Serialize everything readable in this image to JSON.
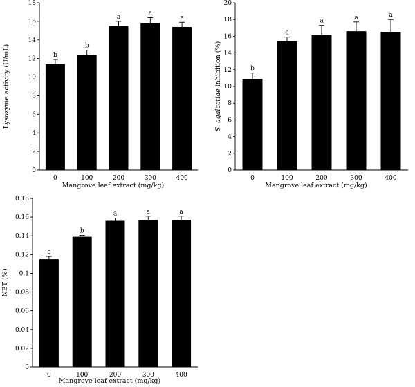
{
  "chart_data": [
    {
      "type": "bar",
      "categories": [
        "0",
        "100",
        "200",
        "300",
        "400"
      ],
      "values": [
        11.4,
        12.4,
        15.5,
        15.8,
        15.4
      ],
      "errors": [
        0.5,
        0.5,
        0.5,
        0.6,
        0.5
      ],
      "significance": [
        "b",
        "b",
        "a",
        "a",
        "a"
      ],
      "ylim": [
        0,
        18
      ],
      "yticks": [
        0,
        2,
        4,
        6,
        8,
        10,
        12,
        14,
        16,
        18
      ],
      "ytick_labels": [
        "0",
        "2",
        "4",
        "6",
        "8",
        "10",
        "12",
        "14",
        "16",
        "18"
      ],
      "xlabel": "Mangrove leaf extract (mg/kg)",
      "ylabel": "Lysozyme activity (U/mL)"
    },
    {
      "type": "bar",
      "categories": [
        "0",
        "100",
        "200",
        "300",
        "400"
      ],
      "values": [
        10.9,
        15.4,
        16.2,
        16.6,
        16.5
      ],
      "errors": [
        0.7,
        0.5,
        1.1,
        1.1,
        1.5
      ],
      "significance": [
        "b",
        "a",
        "a",
        "a",
        "a"
      ],
      "ylim": [
        0,
        20
      ],
      "yticks": [
        0,
        2,
        4,
        6,
        8,
        10,
        12,
        14,
        16,
        18,
        20
      ],
      "ytick_labels": [
        "0",
        "2",
        "4",
        "6",
        "8",
        "10",
        "12",
        "14",
        "16",
        "18",
        "20"
      ],
      "xlabel": "Mangrove leaf extract (mg/kg)",
      "ylabel_italic": "S. agalactiae",
      "ylabel_rest": " inhibition (%)"
    },
    {
      "type": "bar",
      "categories": [
        "0",
        "100",
        "200",
        "300",
        "400"
      ],
      "values": [
        0.115,
        0.139,
        0.156,
        0.157,
        0.157
      ],
      "errors": [
        0.003,
        0.0015,
        0.003,
        0.004,
        0.004
      ],
      "significance": [
        "c",
        "b",
        "a",
        "a",
        "a"
      ],
      "ylim": [
        0,
        0.18
      ],
      "yticks": [
        0,
        0.02,
        0.04,
        0.06,
        0.08,
        0.1,
        0.12,
        0.14,
        0.16,
        0.18
      ],
      "ytick_labels": [
        "0",
        "0.02",
        "0.04",
        "0.06",
        "0.08",
        "0.1",
        "0.12",
        "0.14",
        "0.16",
        "0.18"
      ],
      "xlabel": "Mangrove leaf extract (mg/kg)",
      "ylabel": "NBT (%)"
    }
  ]
}
